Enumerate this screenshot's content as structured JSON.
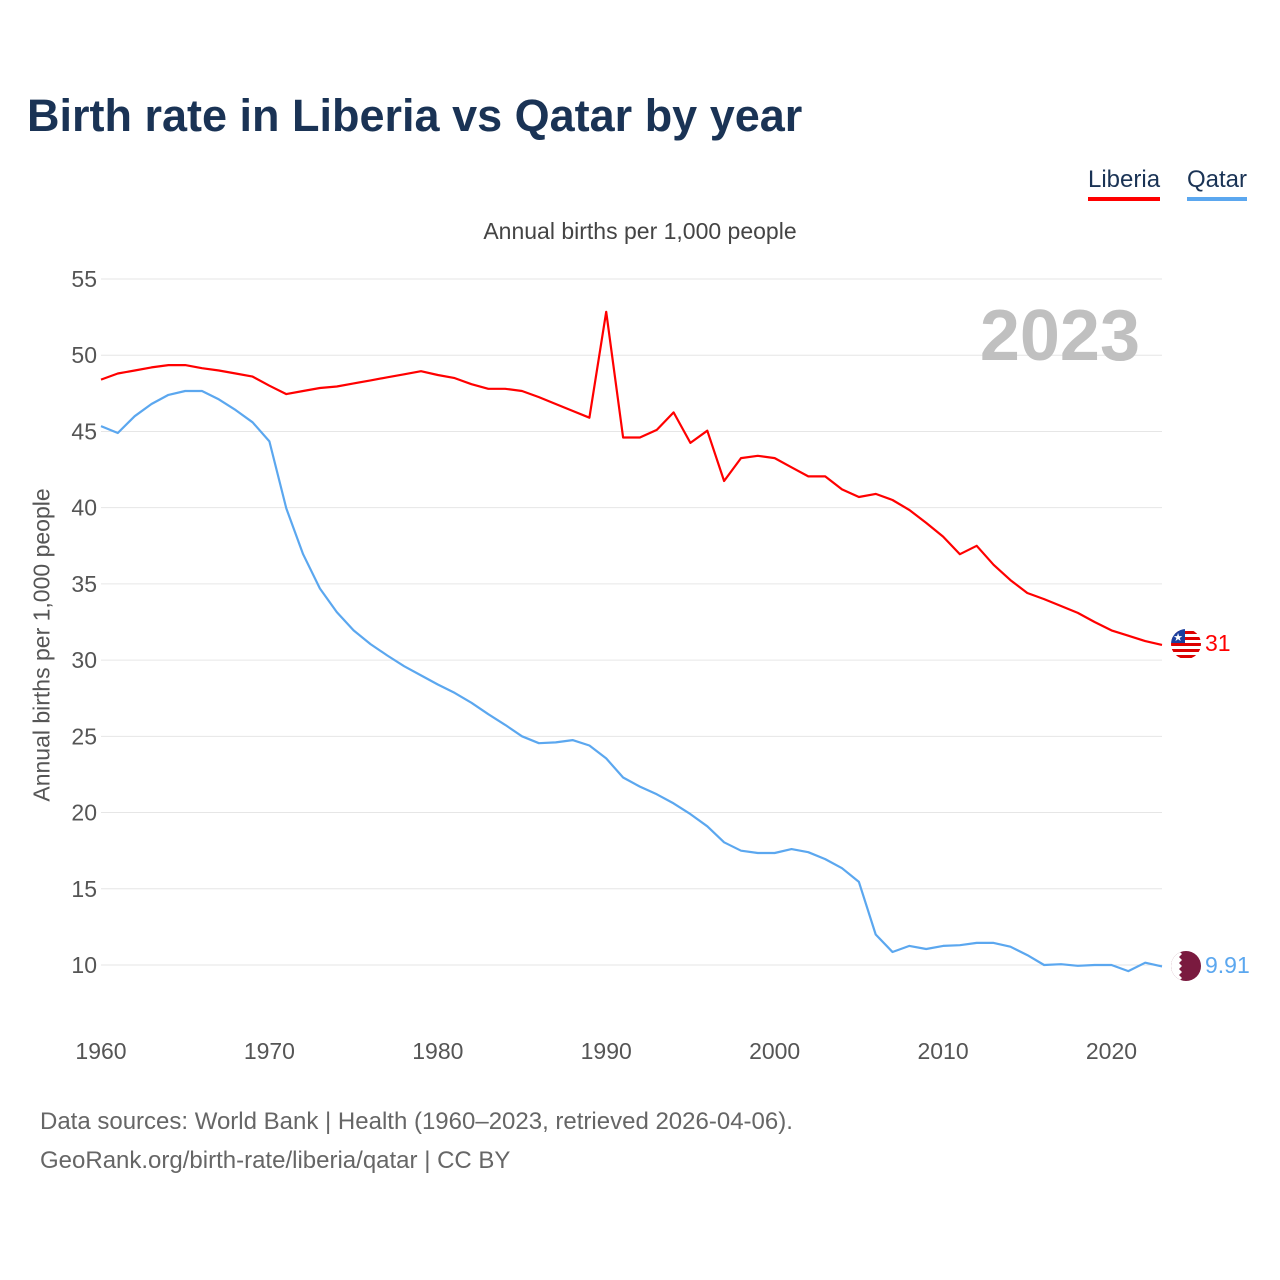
{
  "chart_data": {
    "type": "line",
    "title": "Birth rate in Liberia vs Qatar by year",
    "subtitle": "Annual births per 1,000 people",
    "ylabel": "Annual births per 1,000 people",
    "xlabel": "",
    "year_badge": "2023",
    "xlim": [
      1960,
      2023
    ],
    "ylim": [
      10,
      55
    ],
    "x_ticks": [
      1960,
      1970,
      1980,
      1990,
      2000,
      2010,
      2020
    ],
    "y_ticks": [
      10,
      15,
      20,
      25,
      30,
      35,
      40,
      45,
      50,
      55
    ],
    "grid": true,
    "legend_position": "top-right",
    "x": [
      1960,
      1961,
      1962,
      1963,
      1964,
      1965,
      1966,
      1967,
      1968,
      1969,
      1970,
      1971,
      1972,
      1973,
      1974,
      1975,
      1976,
      1977,
      1978,
      1979,
      1980,
      1981,
      1982,
      1983,
      1984,
      1985,
      1986,
      1987,
      1988,
      1989,
      1990,
      1991,
      1992,
      1993,
      1994,
      1995,
      1996,
      1997,
      1998,
      1999,
      2000,
      2001,
      2002,
      2003,
      2004,
      2005,
      2006,
      2007,
      2008,
      2009,
      2010,
      2011,
      2012,
      2013,
      2014,
      2015,
      2016,
      2017,
      2018,
      2019,
      2020,
      2021,
      2022,
      2023
    ],
    "series": [
      {
        "name": "Liberia",
        "color": "#ff0000",
        "end_label": "31",
        "values": [
          48.4,
          48.8,
          49.0,
          49.2,
          49.35,
          49.35,
          49.15,
          49.0,
          48.8,
          48.6,
          48.0,
          47.45,
          47.65,
          47.85,
          47.95,
          48.15,
          48.35,
          48.55,
          48.75,
          48.95,
          48.7,
          48.5,
          48.1,
          47.8,
          47.8,
          47.65,
          47.25,
          46.8,
          46.35,
          45.9,
          52.85,
          44.6,
          44.6,
          45.1,
          46.25,
          44.25,
          45.05,
          41.75,
          43.25,
          43.4,
          43.25,
          42.65,
          42.05,
          42.05,
          41.2,
          40.7,
          40.9,
          40.5,
          39.85,
          39.0,
          38.1,
          36.95,
          37.5,
          36.25,
          35.25,
          34.4,
          34.0,
          33.55,
          33.1,
          32.5,
          31.95,
          31.6,
          31.25,
          31.0
        ]
      },
      {
        "name": "Qatar",
        "color": "#5ba7ef",
        "end_label": "9.91",
        "values": [
          45.35,
          44.9,
          46.0,
          46.8,
          47.4,
          47.65,
          47.65,
          47.1,
          46.4,
          45.6,
          44.35,
          39.95,
          36.95,
          34.7,
          33.15,
          31.95,
          31.05,
          30.3,
          29.6,
          29.0,
          28.4,
          27.85,
          27.2,
          26.45,
          25.75,
          25.0,
          24.55,
          24.6,
          24.75,
          24.4,
          23.55,
          22.3,
          21.7,
          21.2,
          20.6,
          19.9,
          19.1,
          18.05,
          17.5,
          17.35,
          17.35,
          17.6,
          17.4,
          16.95,
          16.35,
          15.45,
          12.0,
          10.85,
          11.25,
          11.05,
          11.25,
          11.3,
          11.45,
          11.45,
          11.2,
          10.65,
          10.0,
          10.05,
          9.95,
          10.0,
          10.0,
          9.6,
          10.15,
          9.91
        ]
      }
    ]
  },
  "footer": {
    "line1": "Data sources: World Bank | Health (1960–2023, retrieved 2026-04-06).",
    "line2": "GeoRank.org/birth-rate/liberia/qatar | CC BY"
  }
}
